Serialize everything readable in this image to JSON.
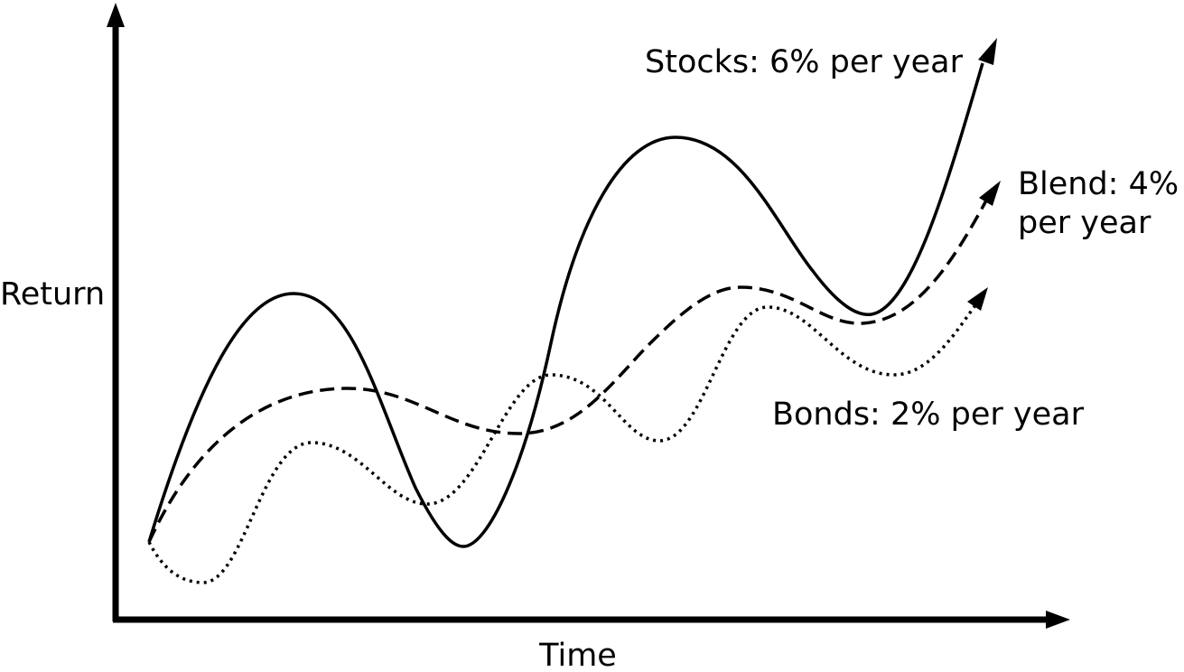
{
  "axes": {
    "y_label": "Return",
    "x_label": "Time"
  },
  "labels": {
    "stocks": "Stocks: 6% per year",
    "blend": [
      "Blend: 4%",
      "per year"
    ],
    "bonds": "Bonds: 2% per year"
  }
}
